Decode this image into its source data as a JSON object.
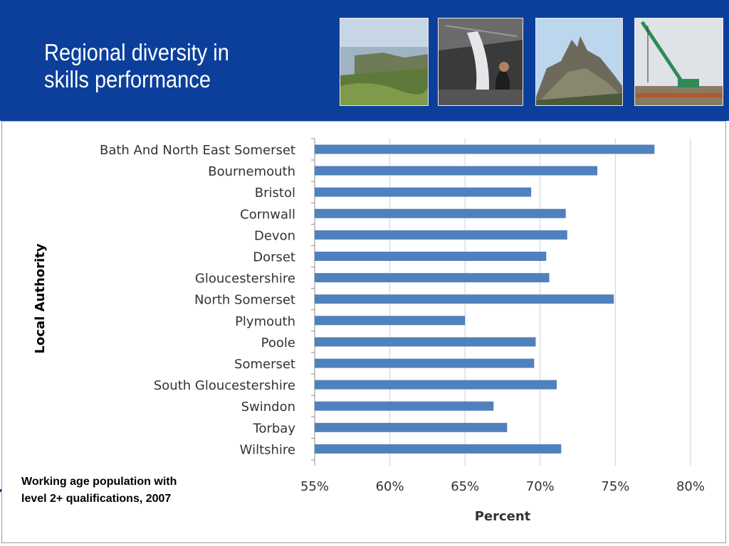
{
  "slide": {
    "title": "Regional diversity in\nskills  performance",
    "caption": "Working age population with level 2+ qualifications, 2007",
    "header_color": "#0b3f9b",
    "photos": [
      "coastline-cliffs-photo",
      "boatbuilding-photo",
      "rock-outcrop-photo",
      "construction-crane-photo"
    ]
  },
  "chart_data": {
    "type": "bar",
    "orientation": "horizontal",
    "title": "",
    "xlabel": "Percent",
    "ylabel": "Local Authority",
    "xlim": [
      55,
      80
    ],
    "x_ticks": [
      "55%",
      "60%",
      "65%",
      "70%",
      "75%",
      "80%"
    ],
    "x_tick_values": [
      55,
      60,
      65,
      70,
      75,
      80
    ],
    "grid": "vertical",
    "bar_color": "#4f81bd",
    "categories": [
      "Bath And North East Somerset",
      "Bournemouth",
      "Bristol",
      "Cornwall",
      "Devon",
      "Dorset",
      "Gloucestershire",
      "North Somerset",
      "Plymouth",
      "Poole",
      "Somerset",
      "South Gloucestershire",
      "Swindon",
      "Torbay",
      "Wiltshire"
    ],
    "values": [
      77.6,
      73.8,
      69.4,
      71.7,
      71.8,
      70.4,
      70.6,
      74.9,
      65.0,
      69.7,
      69.6,
      71.1,
      66.9,
      67.8,
      71.4
    ]
  }
}
